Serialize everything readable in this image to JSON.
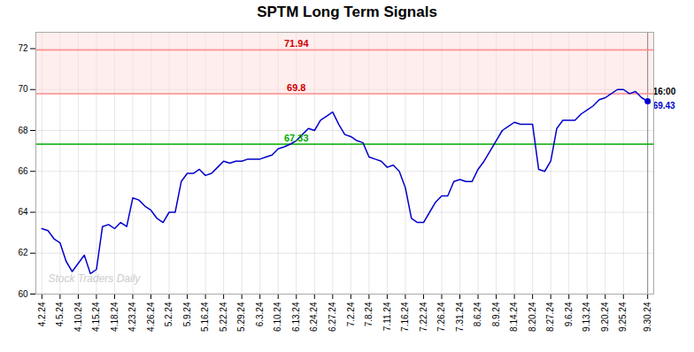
{
  "chart_data": {
    "type": "line",
    "title": "SPTM Long Term Signals",
    "color": "#0000cc",
    "categories": [
      "4.2.24",
      null,
      null,
      "4.5.24",
      null,
      null,
      "4.10.24",
      null,
      null,
      "4.15.24",
      null,
      null,
      "4.18.24",
      null,
      null,
      "4.23.24",
      null,
      null,
      "4.26.24",
      null,
      null,
      "5.2.24",
      null,
      null,
      "5.9.24",
      null,
      null,
      "5.16.24",
      null,
      null,
      "5.22.24",
      null,
      null,
      "5.29.24",
      null,
      null,
      "6.3.24",
      null,
      null,
      "6.10.24",
      null,
      null,
      "6.13.24",
      null,
      null,
      "6.24.24",
      null,
      null,
      "6.27.24",
      null,
      null,
      "7.2.24",
      null,
      null,
      "7.8.24",
      null,
      null,
      "7.11.24",
      null,
      null,
      "7.16.24",
      null,
      null,
      "7.22.24",
      null,
      null,
      "7.26.24",
      null,
      null,
      "7.31.24",
      null,
      null,
      "8.6.24",
      null,
      null,
      "8.9.24",
      null,
      null,
      "8.14.24",
      null,
      null,
      "8.20.24",
      null,
      null,
      "8.27.24",
      null,
      null,
      "9.6.24",
      null,
      null,
      "9.13.24",
      null,
      null,
      "9.20.24",
      null,
      null,
      "9.25.24",
      null,
      null,
      null,
      "9.30.24"
    ],
    "values": [
      63.2,
      63.1,
      62.7,
      62.5,
      61.6,
      61.1,
      61.5,
      61.9,
      61.0,
      61.2,
      63.3,
      63.4,
      63.2,
      63.5,
      63.3,
      64.7,
      64.6,
      64.3,
      64.1,
      63.7,
      63.5,
      64.0,
      64.0,
      65.5,
      65.9,
      65.9,
      66.1,
      65.8,
      65.9,
      66.2,
      66.5,
      66.4,
      66.5,
      66.5,
      66.6,
      66.6,
      66.6,
      66.7,
      66.8,
      67.1,
      67.2,
      67.33,
      67.5,
      67.8,
      68.1,
      68.0,
      68.5,
      68.7,
      68.9,
      68.3,
      67.8,
      67.7,
      67.5,
      67.4,
      66.7,
      66.6,
      66.5,
      66.2,
      66.3,
      66.0,
      65.2,
      63.7,
      63.5,
      63.5,
      64.0,
      64.5,
      64.8,
      64.8,
      65.5,
      65.6,
      65.5,
      65.5,
      66.1,
      66.5,
      67.0,
      67.5,
      68.0,
      68.2,
      68.4,
      68.3,
      68.3,
      68.3,
      66.1,
      66.0,
      66.5,
      68.1,
      68.5,
      68.5,
      68.5,
      68.8,
      69.0,
      69.2,
      69.5,
      69.6,
      69.8,
      70.0,
      70.0,
      69.8,
      69.9,
      69.6,
      69.43
    ],
    "ylim": [
      60,
      72.8
    ],
    "yticks": [
      60,
      62,
      64,
      66,
      68,
      70,
      72
    ],
    "grid": true,
    "hlines": [
      {
        "value": 67.33,
        "label": "67.33",
        "color": "#00aa00",
        "label_color": "#00aa00"
      },
      {
        "value": 69.8,
        "label": "69.8",
        "color": "#ff8888",
        "label_color": "#cc0000"
      },
      {
        "value": 71.94,
        "label": "71.94",
        "color": "#ff8888",
        "label_color": "#cc0000"
      }
    ],
    "bands": [
      {
        "y1": 69.8,
        "y2": 72.8,
        "color": "#ffdddd"
      }
    ],
    "end_label": {
      "time": "16:00",
      "price": "69.43"
    },
    "watermark": "Stock Traders Daily"
  }
}
